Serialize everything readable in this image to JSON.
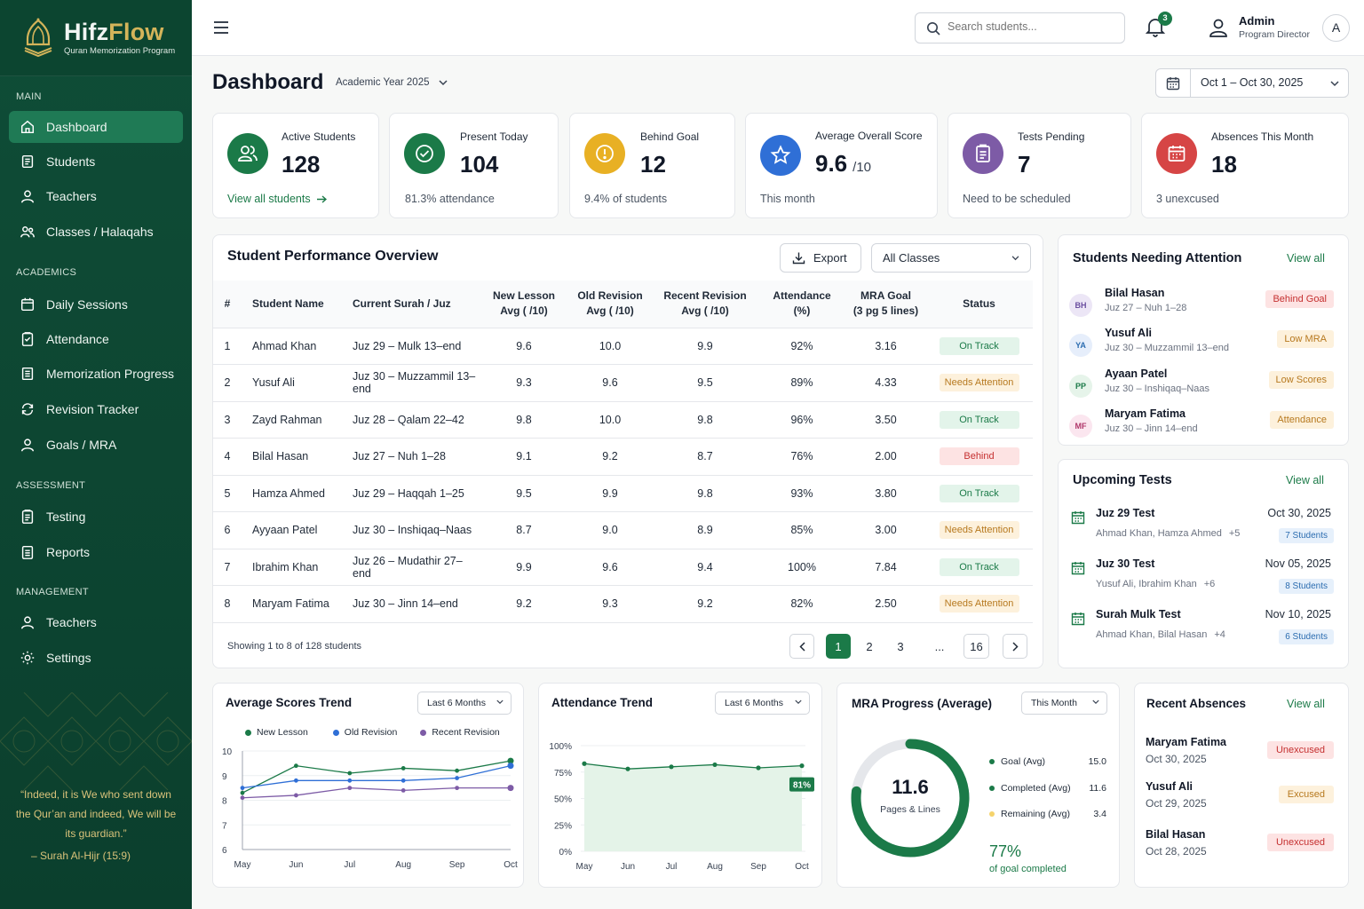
{
  "brand": {
    "name_a": "Hifz",
    "name_b": "Flow",
    "tagline": "Quran Memorization Program"
  },
  "sidebar": {
    "sections": [
      "MAIN",
      "ACADEMICS",
      "ASSESSMENT",
      "MANAGEMENT"
    ],
    "items": [
      {
        "label": "Dashboard",
        "icon": "home-icon",
        "active": true
      },
      {
        "label": "Students",
        "icon": "students-icon"
      },
      {
        "label": "Teachers",
        "icon": "user-icon"
      },
      {
        "label": "Classes / Halaqahs",
        "icon": "group-icon"
      },
      {
        "label": "Daily Sessions",
        "icon": "calendar-icon"
      },
      {
        "label": "Attendance",
        "icon": "clipboard-check-icon"
      },
      {
        "label": "Memorization Progress",
        "icon": "book-icon"
      },
      {
        "label": "Revision Tracker",
        "icon": "refresh-icon"
      },
      {
        "label": "Goals / MRA",
        "icon": "target-user-icon"
      },
      {
        "label": "Testing",
        "icon": "document-icon"
      },
      {
        "label": "Reports",
        "icon": "report-icon"
      },
      {
        "label": "Teachers",
        "icon": "user-icon"
      },
      {
        "label": "Settings",
        "icon": "gear-icon"
      }
    ],
    "quote": "“Indeed, it is We who sent down the Qur’an and indeed, We will be its guardian.”",
    "quote_source": "– Surah Al-Hijr (15:9)"
  },
  "topbar": {
    "search_placeholder": "Search students...",
    "notification_count": "3",
    "user_name": "Admin",
    "user_role": "Program Director",
    "avatar_letter": "A"
  },
  "header": {
    "title": "Dashboard",
    "year": "Academic Year 2025",
    "date_range": "Oct 1 – Oct 30, 2025"
  },
  "stats": [
    {
      "label": "Active Students",
      "value": "128",
      "sub": "View all students",
      "color": "#1b7a48"
    },
    {
      "label": "Present Today",
      "value": "104",
      "sub": "81.3% attendance",
      "color": "#1b7a48"
    },
    {
      "label": "Behind Goal",
      "value": "12",
      "sub": "9.4% of students",
      "color": "#e8b024"
    },
    {
      "label": "Average Overall Score",
      "value": "9.6",
      "unit": "/10",
      "sub": "This month",
      "color": "#2f6fd6"
    },
    {
      "label": "Tests Pending",
      "value": "7",
      "sub": "Need to be scheduled",
      "color": "#7d5ba6"
    },
    {
      "label": "Absences This Month",
      "value": "18",
      "sub": "3 unexcused",
      "color": "#d64545"
    }
  ],
  "performance": {
    "title": "Student Performance Overview",
    "export_label": "Export",
    "filter_label": "All Classes",
    "columns": [
      "#",
      "Student Name",
      "Current Surah / Juz",
      "New Lesson|Avg ( /10)",
      "Old Revision|Avg ( /10)",
      "Recent Revision|Avg ( /10)",
      "Attendance|(%)",
      "MRA Goal|(3 pg 5 lines)",
      "Status"
    ],
    "rows": [
      [
        "1",
        "Ahmad Khan",
        "Juz 29 – Mulk 13–end",
        "9.6",
        "10.0",
        "9.9",
        "92%",
        "3.16",
        "On Track"
      ],
      [
        "2",
        "Yusuf Ali",
        "Juz 30 – Muzzammil 13–end",
        "9.3",
        "9.6",
        "9.5",
        "89%",
        "4.33",
        "Needs Attention"
      ],
      [
        "3",
        "Zayd Rahman",
        "Juz 28 – Qalam 22–42",
        "9.8",
        "10.0",
        "9.8",
        "96%",
        "3.50",
        "On Track"
      ],
      [
        "4",
        "Bilal Hasan",
        "Juz 27 – Nuh 1–28",
        "9.1",
        "9.2",
        "8.7",
        "76%",
        "2.00",
        "Behind"
      ],
      [
        "5",
        "Hamza Ahmed",
        "Juz 29 – Haqqah 1–25",
        "9.5",
        "9.9",
        "9.8",
        "93%",
        "3.80",
        "On Track"
      ],
      [
        "6",
        "Ayyaan Patel",
        "Juz 30 – Inshiqaq–Naas",
        "8.7",
        "9.0",
        "8.9",
        "85%",
        "3.00",
        "Needs Attention"
      ],
      [
        "7",
        "Ibrahim Khan",
        "Juz 26 – Mudathir 27–end",
        "9.9",
        "9.6",
        "9.4",
        "100%",
        "7.84",
        "On Track"
      ],
      [
        "8",
        "Maryam Fatima",
        "Juz 30 – Jinn 14–end",
        "9.2",
        "9.3",
        "9.2",
        "82%",
        "2.50",
        "Needs Attention"
      ]
    ],
    "showing": "Showing 1 to 8 of 128 students",
    "pages": [
      "1",
      "2",
      "3",
      "...",
      "16"
    ]
  },
  "attention": {
    "title": "Students Needing Attention",
    "view_all": "View all",
    "items": [
      {
        "initials": "BH",
        "name": "Bilal Hasan",
        "sub": "Juz 27 – Nuh 1–28",
        "badge": "Behind Goal",
        "kind": "red",
        "avatar_bg": "#ece6f6",
        "avatar_fg": "#6b4fa0"
      },
      {
        "initials": "YA",
        "name": "Yusuf Ali",
        "sub": "Juz 30 – Muzzammil 13–end",
        "badge": "Low MRA",
        "kind": "amber",
        "avatar_bg": "#e6eefb",
        "avatar_fg": "#2b6cb0"
      },
      {
        "initials": "PP",
        "name": "Ayaan Patel",
        "sub": "Juz 30 – Inshiqaq–Naas",
        "badge": "Low Scores",
        "kind": "amber",
        "avatar_bg": "#e6f4ea",
        "avatar_fg": "#1b7a48"
      },
      {
        "initials": "MF",
        "name": "Maryam Fatima",
        "sub": "Juz 30 – Jinn 14–end",
        "badge": "Attendance",
        "kind": "amber",
        "avatar_bg": "#fbe6ef",
        "avatar_fg": "#b0386b"
      }
    ]
  },
  "tests": {
    "title": "Upcoming Tests",
    "view_all": "View all",
    "items": [
      {
        "name": "Juz 29 Test",
        "students": "Ahmad Khan, Hamza Ahmed",
        "more": "+5",
        "date": "Oct 30, 2025",
        "count": "7 Students"
      },
      {
        "name": "Juz 30 Test",
        "students": "Yusuf Ali, Ibrahim Khan",
        "more": "+6",
        "date": "Nov 05, 2025",
        "count": "8 Students"
      },
      {
        "name": "Surah Mulk Test",
        "students": "Ahmad Khan, Bilal Hasan",
        "more": "+4",
        "date": "Nov 10, 2025",
        "count": "6 Students"
      }
    ]
  },
  "scores_trend": {
    "title": "Average Scores Trend",
    "filter": "Last 6 Months",
    "chart_data": {
      "type": "line",
      "categories": [
        "May",
        "Jun",
        "Jul",
        "Aug",
        "Sep",
        "Oct"
      ],
      "ylim": [
        6,
        10
      ],
      "yticks": [
        "10",
        "9",
        "8",
        "7",
        "6"
      ],
      "series": [
        {
          "name": "New Lesson",
          "color": "#1b7a48",
          "values": [
            8.3,
            9.4,
            9.1,
            9.3,
            9.2,
            9.6
          ]
        },
        {
          "name": "Old Revision",
          "color": "#2f6fd6",
          "values": [
            8.5,
            8.8,
            8.8,
            8.8,
            8.9,
            9.4
          ]
        },
        {
          "name": "Recent Revision",
          "color": "#7d5ba6",
          "values": [
            8.1,
            8.2,
            8.5,
            8.4,
            8.5,
            8.5
          ]
        }
      ]
    }
  },
  "attendance_trend": {
    "title": "Attendance Trend",
    "filter": "Last 6 Months",
    "chart_data": {
      "type": "area",
      "categories": [
        "May",
        "Jun",
        "Jul",
        "Aug",
        "Sep",
        "Oct"
      ],
      "ylim": [
        0,
        100
      ],
      "yticks": [
        "100%",
        "75%",
        "50%",
        "25%",
        "0%"
      ],
      "series": [
        {
          "color": "#1b7a48",
          "values": [
            83,
            78,
            80,
            82,
            79,
            81
          ]
        }
      ],
      "last_label": "81%"
    }
  },
  "mra": {
    "title": "MRA Progress (Average)",
    "filter": "This Month",
    "center_value": "11.6",
    "center_label": "Pages & Lines",
    "percent": "77%",
    "percent_label": "of goal completed",
    "chart_data": {
      "type": "pie",
      "progress_fraction": 0.77,
      "legend": [
        {
          "label": "Goal (Avg)",
          "value": "15.0",
          "color": "#1b7a48"
        },
        {
          "label": "Completed (Avg)",
          "value": "11.6",
          "color": "#1b7a48"
        },
        {
          "label": "Remaining (Avg)",
          "value": "3.4",
          "color": "#f5d36b"
        }
      ]
    }
  },
  "absences": {
    "title": "Recent Absences",
    "view_all": "View all",
    "items": [
      {
        "name": "Maryam Fatima",
        "date": "Oct 30, 2025",
        "badge": "Unexcused",
        "kind": "red"
      },
      {
        "name": "Yusuf Ali",
        "date": "Oct 29, 2025",
        "badge": "Excused",
        "kind": "amber"
      },
      {
        "name": "Bilal Hasan",
        "date": "Oct 28, 2025",
        "badge": "Unexcused",
        "kind": "red"
      }
    ]
  }
}
